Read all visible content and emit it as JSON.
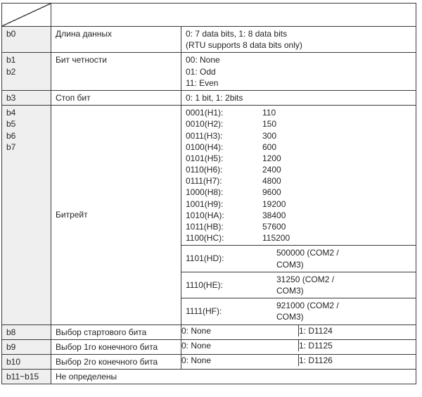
{
  "table": {
    "header_bg": "#efefef",
    "border_color": "#3a3a3a",
    "rows": {
      "b0": {
        "bit": "b0",
        "param": "Длина данных",
        "val_l1": "0: 7 data bits, 1: 8 data bits",
        "val_l2": "(RTU supports 8 data bits only)"
      },
      "parity": {
        "bit_l1": "b1",
        "bit_l2": "b2",
        "param": "Бит четности",
        "val_l1": "00: None",
        "val_l2": "01: Odd",
        "val_l3": "11: Even"
      },
      "b3": {
        "bit": "b3",
        "param": "Стоп бит",
        "val": "0: 1 bit, 1: 2bits"
      },
      "baud": {
        "bit_l1": "b4",
        "bit_l2": "b5",
        "bit_l3": "b6",
        "bit_l4": "b7",
        "param": "Битрейт",
        "list": [
          {
            "k": "0001(H1):",
            "v": "110"
          },
          {
            "k": "0010(H2):",
            "v": "150"
          },
          {
            "k": "0011(H3):",
            "v": "300"
          },
          {
            "k": "0100(H4):",
            "v": "600"
          },
          {
            "k": "0101(H5):",
            "v": "1200"
          },
          {
            "k": "0110(H6):",
            "v": "2400"
          },
          {
            "k": "0111(H7):",
            "v": "4800"
          },
          {
            "k": "1000(H8):",
            "v": "9600"
          },
          {
            "k": "1001(H9):",
            "v": "19200"
          },
          {
            "k": "1010(HA):",
            "v": "38400"
          },
          {
            "k": "1011(HB):",
            "v": "57600"
          },
          {
            "k": "1100(HC):",
            "v": "115200"
          }
        ],
        "ext": [
          {
            "k": "1101(HD):",
            "v1": "500000 (COM2 /",
            "v2": "COM3)"
          },
          {
            "k": "1110(HE):",
            "v1": "31250 (COM2 /",
            "v2": "COM3)"
          },
          {
            "k": "1111(HF):",
            "v1": "921000 (COM2 /",
            "v2": "COM3)"
          }
        ]
      },
      "b8": {
        "bit": "b8",
        "param": "Выбор стартового бита",
        "c0": "0: None",
        "c1": "1: D1124"
      },
      "b9": {
        "bit": "b9",
        "param": "Выбор 1го конечного бита",
        "c0": "0: None",
        "c1": "1: D1125"
      },
      "b10": {
        "bit": "b10",
        "param": "Выбор 2го конечного бита",
        "c0": "0: None",
        "c1": "1: D1126"
      },
      "b11": {
        "bit": "b11~b15",
        "param": "Не определены"
      }
    }
  }
}
